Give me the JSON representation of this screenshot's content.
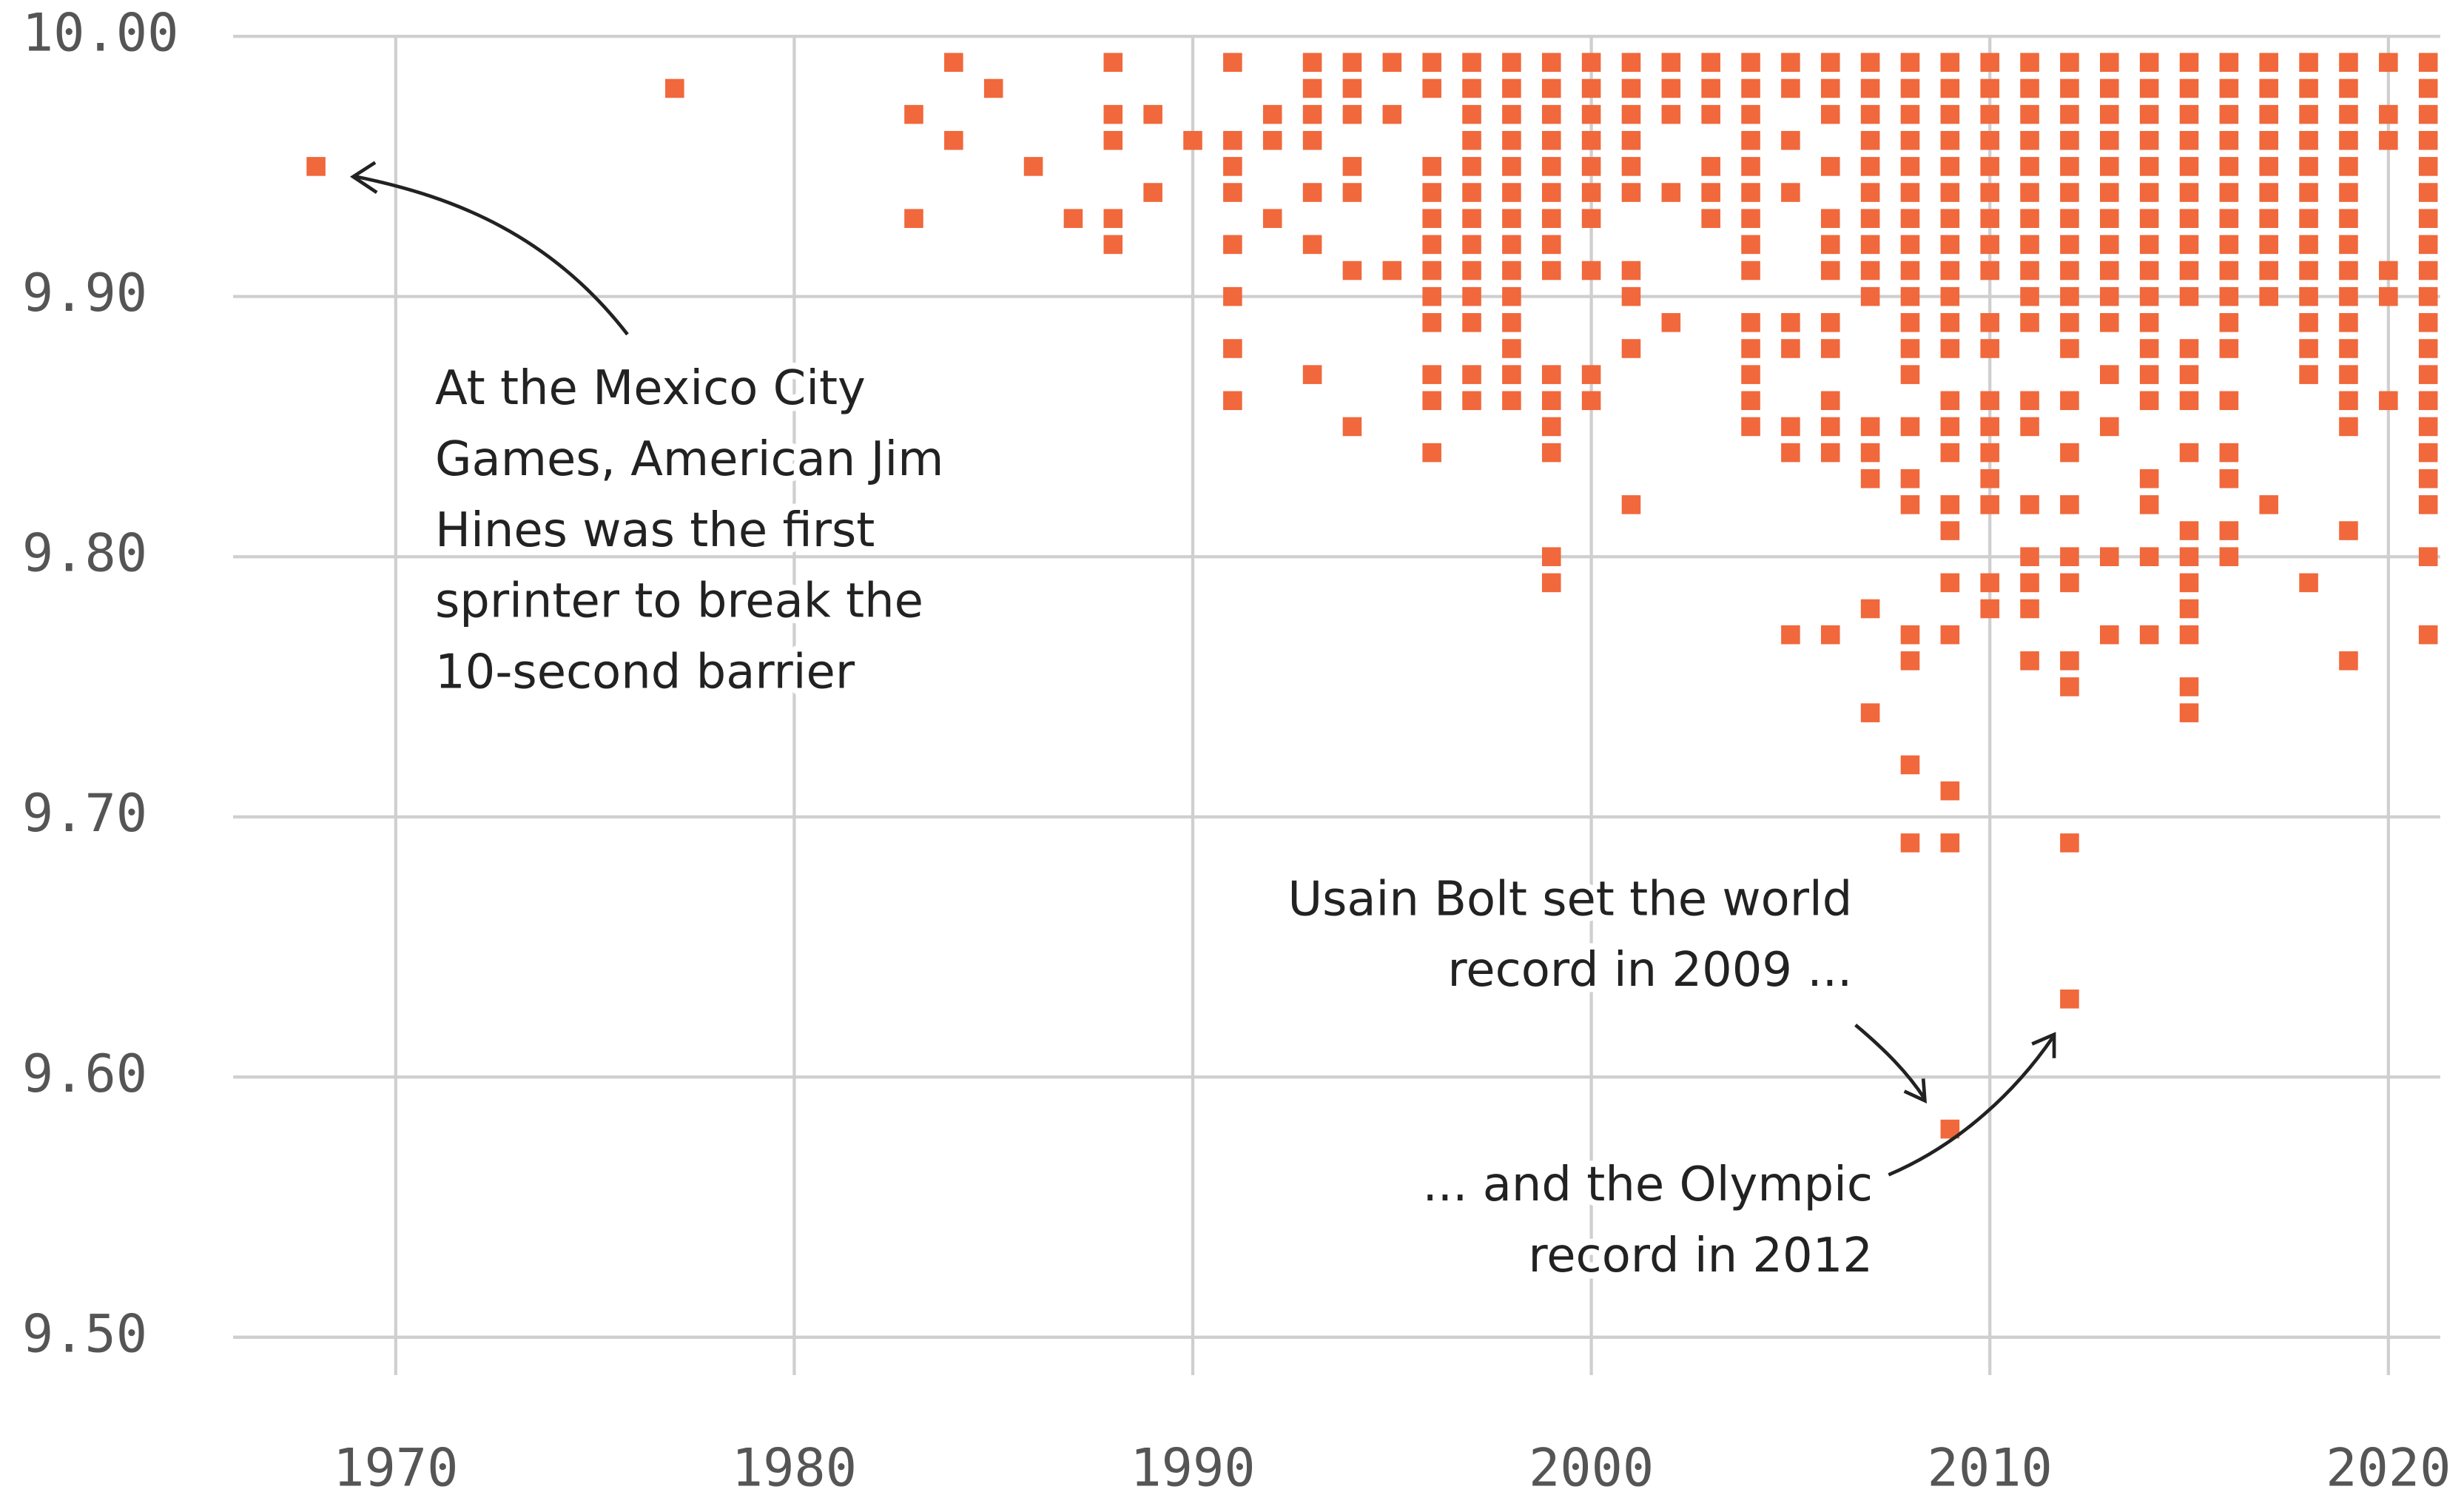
{
  "chart_data": {
    "type": "scatter",
    "color": "#f0683c",
    "grid": true,
    "xlim": [
      1966,
      2021.3
    ],
    "ylim": [
      9.5,
      10.0
    ],
    "xticks": [
      1970,
      1980,
      1990,
      2000,
      2010,
      2020
    ],
    "yticks": [
      {
        "value": 10.0,
        "label": "10.00"
      },
      {
        "value": 9.9,
        "label": "9.90"
      },
      {
        "value": 9.8,
        "label": "9.80"
      },
      {
        "value": 9.7,
        "label": "9.70"
      },
      {
        "value": 9.6,
        "label": "9.60"
      },
      {
        "value": 9.5,
        "label": "9.50"
      }
    ],
    "columns": [
      {
        "x": 1968,
        "values": [
          9.95
        ]
      },
      {
        "x": 1977,
        "values": [
          9.98
        ]
      },
      {
        "x": 1983,
        "values": [
          9.97,
          9.93
        ]
      },
      {
        "x": 1984,
        "values": [
          9.99,
          9.96
        ]
      },
      {
        "x": 1985,
        "values": [
          9.98
        ]
      },
      {
        "x": 1986,
        "values": [
          9.95
        ]
      },
      {
        "x": 1987,
        "values": [
          9.93
        ]
      },
      {
        "x": 1988,
        "values": [
          9.99,
          9.97,
          9.96,
          9.93,
          9.92
        ]
      },
      {
        "x": 1989,
        "values": [
          9.97,
          9.94
        ]
      },
      {
        "x": 1990,
        "values": [
          9.96
        ]
      },
      {
        "x": 1991,
        "values": [
          9.99,
          9.96,
          9.95,
          9.94,
          9.92,
          9.9,
          9.88,
          9.86
        ]
      },
      {
        "x": 1992,
        "values": [
          9.97,
          9.96,
          9.93
        ]
      },
      {
        "x": 1993,
        "values": [
          9.99,
          9.98,
          9.97,
          9.96,
          9.94,
          9.92,
          9.87
        ]
      },
      {
        "x": 1994,
        "values": [
          9.99,
          9.98,
          9.97,
          9.95,
          9.94,
          9.91,
          9.85
        ]
      },
      {
        "x": 1995,
        "values": [
          9.99,
          9.97,
          9.91
        ]
      },
      {
        "x": 1996,
        "values": [
          9.99,
          9.98,
          9.95,
          9.94,
          9.93,
          9.92,
          9.91,
          9.9,
          9.89,
          9.87,
          9.86,
          9.84
        ]
      },
      {
        "x": 1997,
        "values": [
          9.99,
          9.98,
          9.97,
          9.96,
          9.95,
          9.94,
          9.93,
          9.92,
          9.91,
          9.9,
          9.89,
          9.87,
          9.86
        ]
      },
      {
        "x": 1998,
        "values": [
          9.99,
          9.98,
          9.97,
          9.96,
          9.95,
          9.94,
          9.93,
          9.92,
          9.91,
          9.9,
          9.89,
          9.88,
          9.87,
          9.86
        ]
      },
      {
        "x": 1999,
        "values": [
          9.99,
          9.98,
          9.97,
          9.96,
          9.95,
          9.94,
          9.93,
          9.92,
          9.91,
          9.87,
          9.86,
          9.85,
          9.84,
          9.8,
          9.79
        ]
      },
      {
        "x": 2000,
        "values": [
          9.99,
          9.98,
          9.97,
          9.96,
          9.95,
          9.94,
          9.93,
          9.91,
          9.87,
          9.86
        ]
      },
      {
        "x": 2001,
        "values": [
          9.99,
          9.98,
          9.97,
          9.96,
          9.95,
          9.94,
          9.91,
          9.9,
          9.88,
          9.82
        ]
      },
      {
        "x": 2002,
        "values": [
          9.99,
          9.98,
          9.97,
          9.94,
          9.89
        ]
      },
      {
        "x": 2003,
        "values": [
          9.99,
          9.98,
          9.97,
          9.95,
          9.94,
          9.93
        ]
      },
      {
        "x": 2004,
        "values": [
          9.99,
          9.98,
          9.97,
          9.96,
          9.95,
          9.94,
          9.93,
          9.92,
          9.91,
          9.89,
          9.88,
          9.87,
          9.86,
          9.85
        ]
      },
      {
        "x": 2005,
        "values": [
          9.99,
          9.98,
          9.96,
          9.94,
          9.89,
          9.88,
          9.85,
          9.84,
          9.77
        ]
      },
      {
        "x": 2006,
        "values": [
          9.99,
          9.98,
          9.97,
          9.95,
          9.93,
          9.92,
          9.91,
          9.89,
          9.88,
          9.86,
          9.85,
          9.84,
          9.77
        ]
      },
      {
        "x": 2007,
        "values": [
          9.99,
          9.98,
          9.97,
          9.96,
          9.95,
          9.94,
          9.93,
          9.92,
          9.91,
          9.9,
          9.85,
          9.84,
          9.83,
          9.78,
          9.74
        ]
      },
      {
        "x": 2008,
        "values": [
          9.99,
          9.98,
          9.97,
          9.96,
          9.95,
          9.94,
          9.93,
          9.92,
          9.91,
          9.9,
          9.89,
          9.88,
          9.87,
          9.85,
          9.83,
          9.82,
          9.77,
          9.76,
          9.72,
          9.69
        ]
      },
      {
        "x": 2009,
        "values": [
          9.99,
          9.98,
          9.97,
          9.96,
          9.95,
          9.94,
          9.93,
          9.92,
          9.91,
          9.9,
          9.89,
          9.88,
          9.86,
          9.85,
          9.84,
          9.82,
          9.81,
          9.79,
          9.77,
          9.71,
          9.69,
          9.58
        ]
      },
      {
        "x": 2010,
        "values": [
          9.99,
          9.98,
          9.97,
          9.96,
          9.95,
          9.94,
          9.93,
          9.92,
          9.91,
          9.89,
          9.88,
          9.86,
          9.85,
          9.84,
          9.83,
          9.82,
          9.79,
          9.78
        ]
      },
      {
        "x": 2011,
        "values": [
          9.99,
          9.98,
          9.97,
          9.96,
          9.95,
          9.94,
          9.93,
          9.92,
          9.91,
          9.9,
          9.89,
          9.86,
          9.85,
          9.82,
          9.8,
          9.79,
          9.78,
          9.76
        ]
      },
      {
        "x": 2012,
        "values": [
          9.99,
          9.98,
          9.97,
          9.96,
          9.95,
          9.94,
          9.93,
          9.92,
          9.91,
          9.9,
          9.89,
          9.88,
          9.86,
          9.84,
          9.82,
          9.8,
          9.79,
          9.76,
          9.75,
          9.69,
          9.63
        ]
      },
      {
        "x": 2013,
        "values": [
          9.99,
          9.98,
          9.97,
          9.96,
          9.95,
          9.94,
          9.93,
          9.92,
          9.91,
          9.9,
          9.89,
          9.87,
          9.85,
          9.8,
          9.77
        ]
      },
      {
        "x": 2014,
        "values": [
          9.99,
          9.98,
          9.97,
          9.96,
          9.95,
          9.94,
          9.93,
          9.92,
          9.91,
          9.9,
          9.89,
          9.88,
          9.87,
          9.86,
          9.83,
          9.82,
          9.8,
          9.77
        ]
      },
      {
        "x": 2015,
        "values": [
          9.99,
          9.98,
          9.97,
          9.96,
          9.95,
          9.94,
          9.93,
          9.92,
          9.91,
          9.9,
          9.88,
          9.87,
          9.86,
          9.84,
          9.81,
          9.8,
          9.79,
          9.78,
          9.77,
          9.75,
          9.74
        ]
      },
      {
        "x": 2016,
        "values": [
          9.99,
          9.98,
          9.97,
          9.96,
          9.95,
          9.94,
          9.93,
          9.92,
          9.91,
          9.9,
          9.89,
          9.88,
          9.86,
          9.84,
          9.83,
          9.81,
          9.8
        ]
      },
      {
        "x": 2017,
        "values": [
          9.99,
          9.98,
          9.97,
          9.96,
          9.95,
          9.94,
          9.93,
          9.92,
          9.91,
          9.9,
          9.82
        ]
      },
      {
        "x": 2018,
        "values": [
          9.99,
          9.98,
          9.97,
          9.96,
          9.95,
          9.94,
          9.93,
          9.92,
          9.91,
          9.9,
          9.89,
          9.88,
          9.87,
          9.79
        ]
      },
      {
        "x": 2019,
        "values": [
          9.99,
          9.98,
          9.97,
          9.96,
          9.95,
          9.94,
          9.93,
          9.92,
          9.91,
          9.9,
          9.89,
          9.88,
          9.87,
          9.86,
          9.85,
          9.81,
          9.76
        ]
      },
      {
        "x": 2020,
        "values": [
          9.99,
          9.97,
          9.96,
          9.91,
          9.9,
          9.86
        ]
      },
      {
        "x": 2021,
        "values": [
          9.99,
          9.98,
          9.97,
          9.96,
          9.95,
          9.94,
          9.93,
          9.92,
          9.91,
          9.9,
          9.89,
          9.88,
          9.87,
          9.86,
          9.85,
          9.84,
          9.83,
          9.82,
          9.8,
          9.77
        ]
      }
    ],
    "annotations": [
      {
        "lines": [
          "At the Mexico City",
          "Games, American Jim",
          "Hines was the first",
          "sprinter to break the",
          "10-second barrier"
        ]
      },
      {
        "lines": [
          "Usain Bolt set the world",
          "record in 2009 ..."
        ]
      },
      {
        "lines": [
          "... and the Olympic",
          "record in 2012"
        ]
      }
    ]
  }
}
